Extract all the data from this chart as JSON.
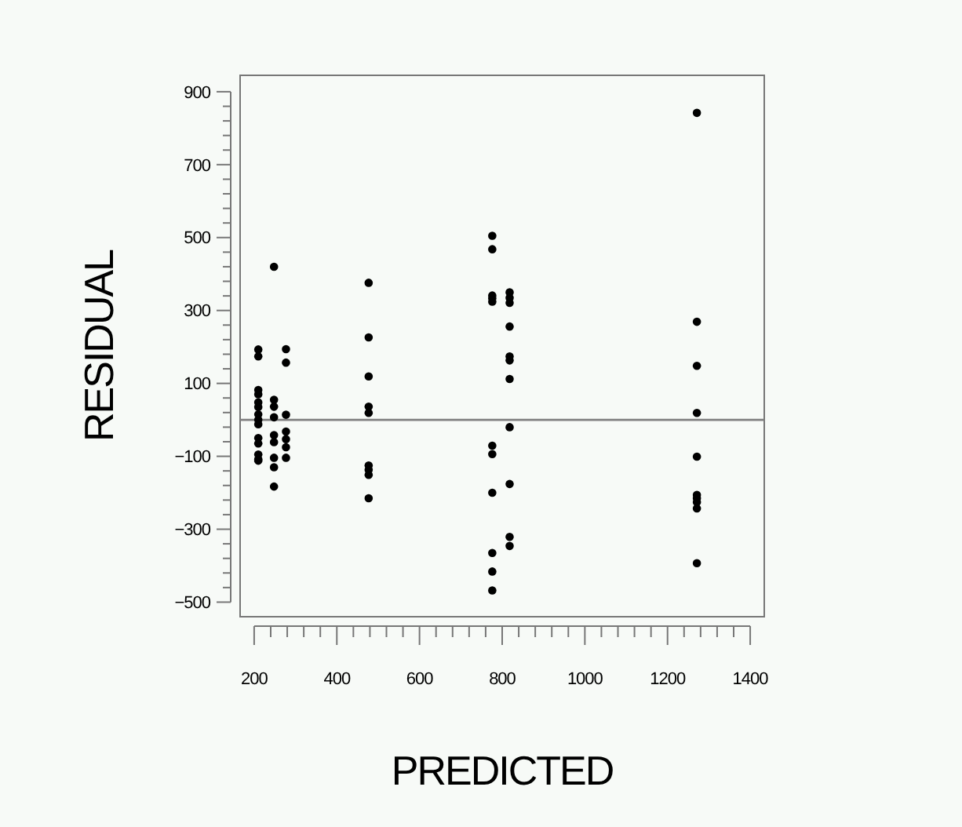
{
  "chart_data": {
    "type": "scatter",
    "xlabel": "PREDICTED",
    "ylabel": "RESIDUAL",
    "marker": "circle",
    "grid": false,
    "xlim": [
      166,
      1434
    ],
    "ylim": [
      -540,
      945
    ],
    "xticks": [
      200,
      {
        "value": 240,
        "label": null
      },
      {
        "value": 280,
        "label": null
      },
      {
        "value": 320,
        "label": null
      },
      {
        "value": 360,
        "label": null
      },
      400,
      {
        "value": 440,
        "label": null
      },
      {
        "value": 480,
        "label": null
      },
      {
        "value": 520,
        "label": null
      },
      {
        "value": 560,
        "label": null
      },
      600,
      {
        "value": 640,
        "label": null
      },
      {
        "value": 680,
        "label": null
      },
      {
        "value": 720,
        "label": null
      },
      {
        "value": 760,
        "label": null
      },
      800,
      {
        "value": 840,
        "label": null
      },
      {
        "value": 880,
        "label": null
      },
      {
        "value": 920,
        "label": null
      },
      {
        "value": 960,
        "label": null
      },
      1000,
      {
        "value": 1040,
        "label": null
      },
      {
        "value": 1080,
        "label": null
      },
      {
        "value": 1120,
        "label": null
      },
      {
        "value": 1160,
        "label": null
      },
      1200,
      {
        "value": 1240,
        "label": null
      },
      {
        "value": 1280,
        "label": null
      },
      {
        "value": 1320,
        "label": null
      },
      {
        "value": 1360,
        "label": null
      },
      1400
    ],
    "yticks": [
      -500,
      {
        "value": -460,
        "label": null
      },
      {
        "value": -420,
        "label": null
      },
      {
        "value": -380,
        "label": null
      },
      {
        "value": -340,
        "label": null
      },
      -300,
      {
        "value": -260,
        "label": null
      },
      {
        "value": -220,
        "label": null
      },
      {
        "value": -180,
        "label": null
      },
      {
        "value": -140,
        "label": null
      },
      -100,
      {
        "value": -60,
        "label": null
      },
      {
        "value": -20,
        "label": null
      },
      {
        "value": 20,
        "label": null
      },
      {
        "value": 60,
        "label": null
      },
      100,
      {
        "value": 140,
        "label": null
      },
      {
        "value": 180,
        "label": null
      },
      {
        "value": 220,
        "label": null
      },
      {
        "value": 260,
        "label": null
      },
      300,
      {
        "value": 340,
        "label": null
      },
      {
        "value": 380,
        "label": null
      },
      {
        "value": 420,
        "label": null
      },
      {
        "value": 460,
        "label": null
      },
      500,
      {
        "value": 540,
        "label": null
      },
      {
        "value": 580,
        "label": null
      },
      {
        "value": 620,
        "label": null
      },
      {
        "value": 660,
        "label": null
      },
      700,
      {
        "value": 740,
        "label": null
      },
      {
        "value": 780,
        "label": null
      },
      {
        "value": 820,
        "label": null
      },
      {
        "value": 860,
        "label": null
      },
      900
    ],
    "ref_lines": [
      {
        "axis": "y",
        "value": 0,
        "color": "#808080"
      }
    ],
    "series": [
      {
        "color": "#000000",
        "x": [
          210,
          210,
          210,
          210,
          210,
          210,
          210,
          210,
          210,
          210,
          210,
          210,
          210,
          210,
          248,
          248,
          248,
          248,
          248,
          248,
          248,
          248,
          248,
          277,
          277,
          277,
          277,
          277,
          277,
          277,
          477,
          477,
          477,
          477,
          477,
          477,
          477,
          477,
          477,
          776,
          776,
          776,
          776,
          776,
          776,
          776,
          776,
          776,
          776,
          776,
          818,
          818,
          818,
          818,
          818,
          818,
          818,
          818,
          818,
          818,
          818,
          1271,
          1271,
          1271,
          1271,
          1271,
          1271,
          1271,
          1271,
          1271,
          1271
        ],
        "values": [
          174,
          193,
          82,
          70,
          48,
          35,
          15,
          0,
          -12,
          -50,
          -65,
          -95,
          -108,
          -112,
          420,
          55,
          36,
          7,
          -42,
          -61,
          -104,
          -130,
          -183,
          194,
          157,
          14,
          -32,
          -53,
          -75,
          -104,
          376,
          226,
          119,
          36,
          19,
          -125,
          -137,
          -151,
          -215,
          505,
          468,
          341,
          333,
          324,
          -71,
          -94,
          -200,
          -365,
          -416,
          -468,
          350,
          335,
          321,
          256,
          174,
          163,
          112,
          -20,
          -176,
          -321,
          -346,
          842,
          269,
          148,
          19,
          -101,
          -206,
          -215,
          -226,
          -243,
          -393
        ]
      }
    ]
  }
}
